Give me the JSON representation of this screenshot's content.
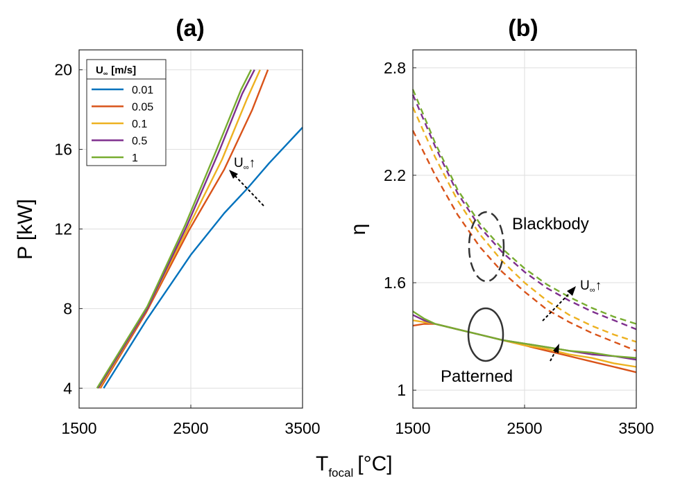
{
  "figure": {
    "xlabel_main": "T",
    "xlabel_sub": "focal",
    "xlabel_unit": "[°C]"
  },
  "chart_data": [
    {
      "panel": "a",
      "title": "(a)",
      "type": "line",
      "xlabel": "T_focal [°C]",
      "ylabel": "P [kW]",
      "xlim": [
        1500,
        3500
      ],
      "ylim": [
        3,
        21
      ],
      "xticks": [
        1500,
        2500,
        3500
      ],
      "yticks": [
        4,
        8,
        12,
        16,
        20
      ],
      "xticklabels": [
        "1500",
        "2500",
        "3500"
      ],
      "yticklabels": [
        "4",
        "8",
        "12",
        "16",
        "20"
      ],
      "grid": true,
      "legend": {
        "title_main": "U",
        "title_sub": "∞",
        "title_unit": "[m/s]",
        "placement": "top-left"
      },
      "series": [
        {
          "name": "0.01",
          "color": "#0072BD",
          "x": [
            1720,
            2100,
            2500,
            2800,
            3000,
            3200,
            3500
          ],
          "y": [
            4,
            7.4,
            10.7,
            12.8,
            14.0,
            15.3,
            17.1
          ]
        },
        {
          "name": "0.05",
          "color": "#D95319",
          "x": [
            1690,
            2100,
            2480,
            2800,
            3050,
            3190
          ],
          "y": [
            4,
            7.8,
            11.9,
            15.0,
            18.0,
            20
          ]
        },
        {
          "name": "0.1",
          "color": "#EDB120",
          "x": [
            1680,
            2100,
            2470,
            2780,
            3000,
            3120
          ],
          "y": [
            4,
            7.9,
            12.0,
            15.5,
            18.5,
            20
          ]
        },
        {
          "name": "0.5",
          "color": "#7E2F8E",
          "x": [
            1670,
            2110,
            2460,
            2760,
            2960,
            3070
          ],
          "y": [
            4,
            8.0,
            12.1,
            16.0,
            18.8,
            20
          ]
        },
        {
          "name": "1",
          "color": "#77AC30",
          "x": [
            1660,
            2110,
            2450,
            2740,
            2950,
            3040
          ],
          "y": [
            4,
            8.1,
            12.2,
            16.1,
            19.0,
            20
          ]
        }
      ],
      "annotations": [
        {
          "text_main": "U",
          "text_sub": "∞",
          "text_arrow": "↑"
        }
      ]
    },
    {
      "panel": "b",
      "title": "(b)",
      "type": "line",
      "xlabel": "T_focal [°C]",
      "ylabel": "η",
      "xlim": [
        1500,
        3500
      ],
      "ylim": [
        0.9,
        2.9
      ],
      "xticks": [
        1500,
        2500,
        3500
      ],
      "yticks": [
        1,
        1.6,
        2.2,
        2.8
      ],
      "xticklabels": [
        "1500",
        "2500",
        "3500"
      ],
      "yticklabels": [
        "1",
        "1.6",
        "2.2",
        "2.8"
      ],
      "grid": true,
      "series": [
        {
          "name": "",
          "group": "Blackbody",
          "style": "dashed",
          "color": "#D95319",
          "x": [
            1500,
            1700,
            1900,
            2100,
            2300,
            2500,
            2700,
            2900,
            3100,
            3300,
            3500
          ],
          "y": [
            2.45,
            2.2,
            1.98,
            1.8,
            1.66,
            1.55,
            1.45,
            1.38,
            1.32,
            1.27,
            1.22
          ]
        },
        {
          "name": "",
          "group": "Blackbody",
          "style": "dashed",
          "color": "#EDB120",
          "x": [
            1500,
            1700,
            1900,
            2100,
            2300,
            2500,
            2700,
            2900,
            3100,
            3300,
            3500
          ],
          "y": [
            2.58,
            2.3,
            2.06,
            1.87,
            1.72,
            1.6,
            1.5,
            1.42,
            1.36,
            1.31,
            1.27
          ]
        },
        {
          "name": "",
          "group": "Blackbody",
          "style": "dashed",
          "color": "#7E2F8E",
          "x": [
            1500,
            1700,
            1900,
            2100,
            2300,
            2500,
            2700,
            2900,
            3100,
            3300,
            3500
          ],
          "y": [
            2.65,
            2.36,
            2.1,
            1.91,
            1.77,
            1.66,
            1.57,
            1.5,
            1.44,
            1.39,
            1.34
          ]
        },
        {
          "name": "",
          "group": "Blackbody",
          "style": "dashed",
          "color": "#77AC30",
          "x": [
            1500,
            1700,
            1900,
            2100,
            2300,
            2500,
            2700,
            2900,
            3100,
            3300,
            3500
          ],
          "y": [
            2.68,
            2.38,
            2.12,
            1.93,
            1.79,
            1.68,
            1.59,
            1.52,
            1.46,
            1.41,
            1.37
          ]
        },
        {
          "name": "",
          "group": "Patterned",
          "style": "solid",
          "color": "#D95319",
          "x": [
            1500,
            1600,
            1700,
            1900,
            2100,
            2300,
            2500,
            2700,
            2900,
            3100,
            3300,
            3500
          ],
          "y": [
            1.36,
            1.37,
            1.37,
            1.34,
            1.31,
            1.28,
            1.25,
            1.22,
            1.19,
            1.16,
            1.13,
            1.1
          ]
        },
        {
          "name": "",
          "group": "Patterned",
          "style": "solid",
          "color": "#EDB120",
          "x": [
            1500,
            1600,
            1700,
            1900,
            2100,
            2300,
            2500,
            2700,
            2900,
            3100,
            3300,
            3500
          ],
          "y": [
            1.39,
            1.38,
            1.37,
            1.34,
            1.31,
            1.28,
            1.25,
            1.23,
            1.2,
            1.18,
            1.15,
            1.13
          ]
        },
        {
          "name": "",
          "group": "Patterned",
          "style": "solid",
          "color": "#7E2F8E",
          "x": [
            1500,
            1600,
            1700,
            1900,
            2100,
            2300,
            2500,
            2700,
            2900,
            3100,
            3300,
            3500
          ],
          "y": [
            1.42,
            1.39,
            1.37,
            1.34,
            1.31,
            1.28,
            1.26,
            1.24,
            1.22,
            1.2,
            1.19,
            1.17
          ]
        },
        {
          "name": "",
          "group": "Patterned",
          "style": "solid",
          "color": "#77AC30",
          "x": [
            1500,
            1600,
            1700,
            1900,
            2100,
            2300,
            2500,
            2700,
            2900,
            3100,
            3300,
            3500
          ],
          "y": [
            1.44,
            1.4,
            1.37,
            1.34,
            1.31,
            1.28,
            1.26,
            1.24,
            1.22,
            1.21,
            1.19,
            1.18
          ]
        }
      ],
      "annotations": [
        {
          "text": "Blackbody"
        },
        {
          "text": "Patterned"
        },
        {
          "text_main": "U",
          "text_sub": "∞",
          "text_arrow": "↑"
        }
      ]
    }
  ]
}
